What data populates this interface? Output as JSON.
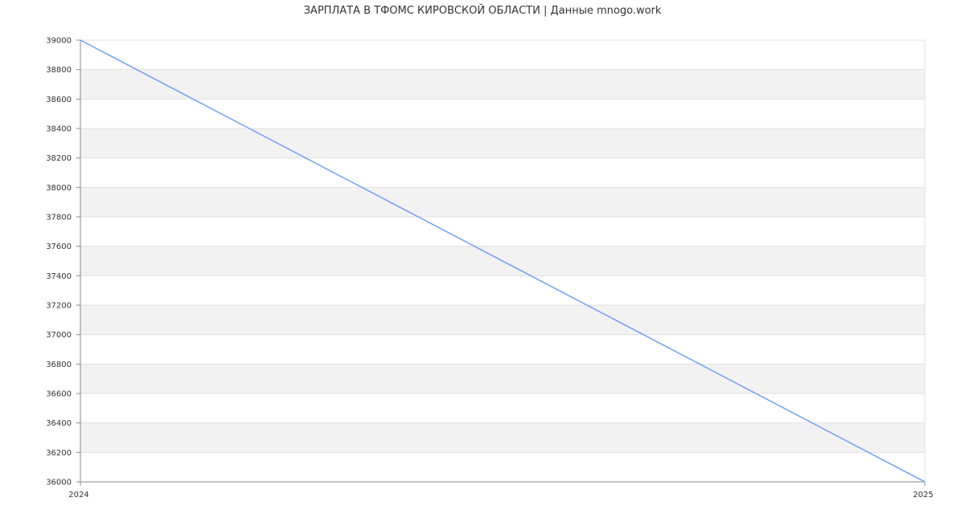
{
  "chart_data": {
    "type": "line",
    "title": "ЗАРПЛАТА В ТФОМС КИРОВСКОЙ ОБЛАСТИ | Данные mnogo.work",
    "xlabel": "",
    "ylabel": "",
    "x": [
      "2024",
      "2025"
    ],
    "series": [
      {
        "values": [
          39000,
          36000
        ]
      }
    ],
    "ylim": [
      36000,
      39000
    ],
    "yticks": [
      36000,
      36200,
      36400,
      36600,
      36800,
      37000,
      37200,
      37400,
      37600,
      37800,
      38000,
      38200,
      38400,
      38600,
      38800,
      39000
    ],
    "grid": true,
    "legend": "none",
    "colors": {
      "line": "#6f9ef8",
      "band": "#f2f2f2",
      "grid": "#e0e0e0",
      "axis": "#888888"
    }
  }
}
